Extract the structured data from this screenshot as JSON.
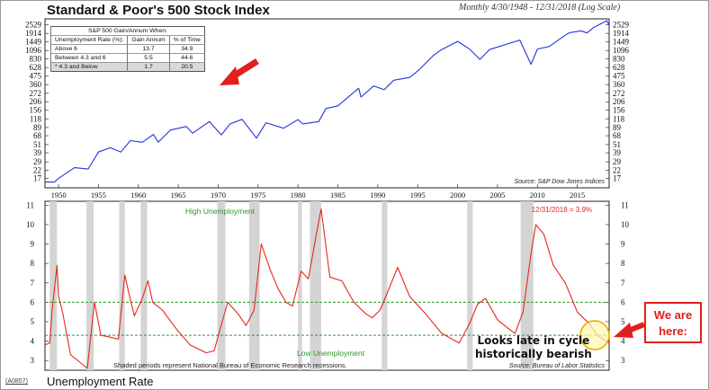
{
  "header": {
    "title": "Standard & Poor's 500 Stock Index",
    "subtitle": "Monthly 4/30/1948 - 12/31/2018 (Log Scale)"
  },
  "footer": {
    "title": "Unemployment Rate",
    "code": "(A0857)"
  },
  "stats_table": {
    "caption": "S&P 500 Gain/Annum When:",
    "headers": [
      "Unemployment Rate (%):",
      "Gain Annum",
      "% of Time"
    ],
    "rows": [
      {
        "label": "Above 6",
        "gain": "13.7",
        "time": "34.9"
      },
      {
        "label": "Between 4.3 and 6",
        "gain": "5.5",
        "time": "44.6"
      },
      {
        "label": "* 4.3 and Below",
        "gain": "1.7",
        "time": "20.5"
      }
    ]
  },
  "annotations": {
    "callout_lines": [
      "We are",
      "here:"
    ],
    "note_lines": [
      "Looks late in cycle",
      "historically bearish"
    ],
    "high_unemp": "High Unemployment",
    "low_unemp": "Low Unemployment",
    "latest": "12/31/2018 = 3.9%",
    "recession_note": "Shaded periods represent National Bureau of Economic Research recessions.",
    "source_top": "Source: S&P Dow Jones Indices",
    "source_bottom": "Source: Bureau of Labor Statistics"
  },
  "colors": {
    "sp500_line": "#2233dd",
    "unemp_line": "#e8261c",
    "threshold_line": "#2a9a2a",
    "recession_shade": "#d4d4d4",
    "accent_red": "#e0201c"
  },
  "chart_data": [
    {
      "type": "line",
      "title": "Standard & Poor's 500 Stock Index",
      "scale": "log",
      "ylim": [
        14,
        2900
      ],
      "xlim": [
        1948.3,
        2018.99
      ],
      "yticks": [
        17,
        22,
        29,
        39,
        51,
        68,
        89,
        118,
        156,
        206,
        272,
        360,
        475,
        628,
        830,
        1096,
        1449,
        1914,
        2529
      ],
      "xticks": [
        1950,
        1955,
        1960,
        1965,
        1970,
        1975,
        1980,
        1985,
        1990,
        1995,
        2000,
        2005,
        2010,
        2015
      ],
      "series": [
        {
          "x": [
            1948.3,
            1949.5,
            1950,
            1952,
            1953.7,
            1955,
            1956.5,
            1957.8,
            1959,
            1960.5,
            1961.9,
            1962.5,
            1964,
            1966,
            1966.8,
            1968.9,
            1970.4,
            1971.5,
            1973,
            1974.8,
            1976,
            1978.2,
            1980,
            1980.6,
            1982.6,
            1983.5,
            1985,
            1987.6,
            1987.9,
            1989.5,
            1990.8,
            1992,
            1994,
            1995,
            1997,
            1998,
            2000,
            2001.5,
            2002.8,
            2004,
            2007.8,
            2009.2,
            2010,
            2011.5,
            2013,
            2014,
            2015.5,
            2016.2,
            2017,
            2018.7,
            2018.99
          ],
          "values": [
            15,
            15,
            17,
            24,
            23,
            40,
            46,
            40,
            58,
            55,
            71,
            55,
            82,
            92,
            74,
            108,
            70,
            100,
            116,
            63,
            104,
            87,
            115,
            100,
            108,
            165,
            180,
            320,
            240,
            345,
            305,
            415,
            455,
            560,
            940,
            1130,
            1480,
            1150,
            820,
            1130,
            1540,
            700,
            1150,
            1250,
            1650,
            1960,
            2080,
            1940,
            2300,
            2900,
            2510
          ]
        }
      ]
    },
    {
      "type": "line",
      "title": "Unemployment Rate",
      "ylabel": "",
      "ylim": [
        2.5,
        11.2
      ],
      "xlim": [
        1948.3,
        2018.99
      ],
      "yticks": [
        3,
        4,
        5,
        6,
        7,
        8,
        9,
        10,
        11
      ],
      "thresholds": [
        6,
        4.3
      ],
      "recessions": [
        [
          1948.9,
          1949.8
        ],
        [
          1953.5,
          1954.4
        ],
        [
          1957.6,
          1958.3
        ],
        [
          1960.3,
          1961.1
        ],
        [
          1969.9,
          1970.9
        ],
        [
          1973.9,
          1975.2
        ],
        [
          1980.0,
          1980.5
        ],
        [
          1981.5,
          1982.9
        ],
        [
          1990.5,
          1991.2
        ],
        [
          2001.2,
          2001.9
        ],
        [
          2007.9,
          2009.5
        ]
      ],
      "series": [
        {
          "x": [
            1948.3,
            1948.9,
            1949.2,
            1949.8,
            1950,
            1950.5,
            1951.5,
            1953,
            1953.6,
            1954.5,
            1955.3,
            1956.5,
            1957.5,
            1958.3,
            1958.8,
            1959.5,
            1960.5,
            1961.2,
            1961.8,
            1963,
            1965,
            1966.5,
            1968.5,
            1969.5,
            1970.5,
            1971.2,
            1972.5,
            1973.5,
            1974.5,
            1975.4,
            1976.5,
            1977.5,
            1978.5,
            1979.3,
            1980.4,
            1981.3,
            1982.3,
            1982.9,
            1984,
            1985.5,
            1987,
            1988.5,
            1989.3,
            1990.3,
            1991.5,
            1992.5,
            1994,
            1996,
            1998,
            2000.2,
            2001.5,
            2002.5,
            2003.5,
            2005,
            2006.5,
            2007.2,
            2008.2,
            2009.2,
            2009.8,
            2010.8,
            2012,
            2013.5,
            2015,
            2016.5,
            2017.5,
            2018.99
          ],
          "values": [
            3.8,
            3.9,
            5.6,
            7.9,
            6.3,
            5.5,
            3.3,
            2.8,
            2.6,
            6.0,
            4.3,
            4.2,
            4.1,
            7.4,
            6.5,
            5.3,
            6.2,
            7.1,
            6.0,
            5.6,
            4.5,
            3.8,
            3.4,
            3.5,
            5.0,
            6.0,
            5.4,
            4.8,
            5.6,
            9.0,
            7.7,
            6.7,
            6.0,
            5.8,
            7.6,
            7.2,
            9.5,
            10.8,
            7.3,
            7.1,
            6.0,
            5.4,
            5.2,
            5.6,
            6.8,
            7.8,
            6.3,
            5.4,
            4.4,
            3.9,
            4.9,
            5.9,
            6.2,
            5.1,
            4.6,
            4.4,
            5.5,
            8.5,
            10.0,
            9.5,
            7.9,
            7.0,
            5.5,
            4.9,
            4.3,
            3.9
          ]
        }
      ]
    }
  ]
}
